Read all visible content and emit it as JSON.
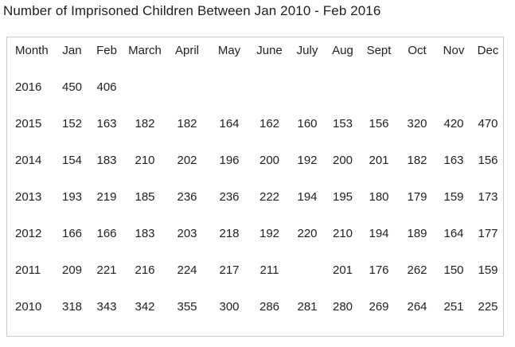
{
  "chart_data": {
    "type": "table",
    "title": "Number of Imprisoned Children Between Jan 2010 - Feb 2016",
    "columns": [
      "Month",
      "Jan",
      "Feb",
      "March",
      "April",
      "May",
      "June",
      "July",
      "Aug",
      "Sept",
      "Oct",
      "Nov",
      "Dec"
    ],
    "rows": [
      {
        "year": "2016",
        "values": [
          "450",
          "406",
          "",
          "",
          "",
          "",
          "",
          "",
          "",
          "",
          "",
          ""
        ]
      },
      {
        "year": "2015",
        "values": [
          "152",
          "163",
          "182",
          "182",
          "164",
          "162",
          "160",
          "153",
          "156",
          "320",
          "420",
          "470"
        ]
      },
      {
        "year": "2014",
        "values": [
          "154",
          "183",
          "210",
          "202",
          "196",
          "200",
          "192",
          "200",
          "201",
          "182",
          "163",
          "156"
        ]
      },
      {
        "year": "2013",
        "values": [
          "193",
          "219",
          "185",
          "236",
          "236",
          "222",
          "194",
          "195",
          "180",
          "179",
          "159",
          "173"
        ]
      },
      {
        "year": "2012",
        "values": [
          "166",
          "166",
          "183",
          "203",
          "218",
          "192",
          "220",
          "210",
          "194",
          "189",
          "164",
          "177"
        ]
      },
      {
        "year": "2011",
        "values": [
          "209",
          "221",
          "216",
          "224",
          "217",
          "211",
          "",
          "201",
          "176",
          "262",
          "150",
          "159"
        ]
      },
      {
        "year": "2010",
        "values": [
          "318",
          "343",
          "342",
          "355",
          "300",
          "286",
          "281",
          "280",
          "269",
          "264",
          "251",
          "225"
        ]
      }
    ]
  },
  "colors": {
    "background": "#ffffff",
    "text": "#222222",
    "table_border": "#cccccc"
  }
}
